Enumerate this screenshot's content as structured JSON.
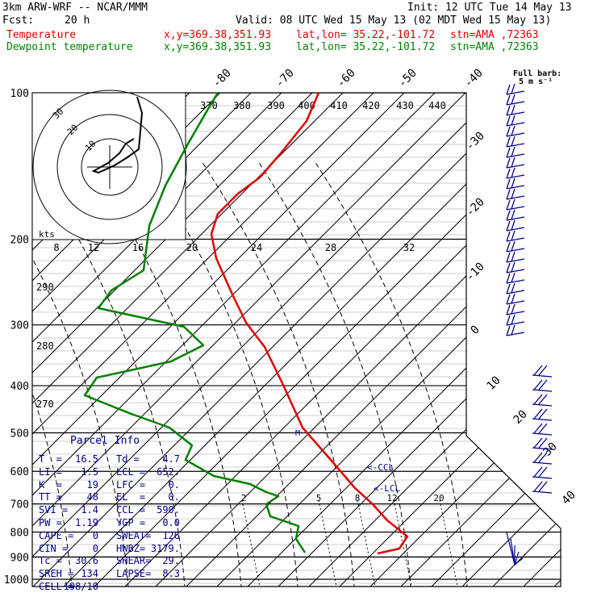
{
  "header": {
    "model": "3km ARW-WRF -- NCAR/MMM",
    "init": "Init: 12 UTC Tue 14 May 13",
    "fcst_label": "Fcst:",
    "fcst_value": "20 h",
    "valid": "Valid: 08 UTC Wed 15 May 13 (02 MDT Wed 15 May 13)",
    "temp_label": "Temperature",
    "dew_label": "Dewpoint temperature",
    "xy": "x,y=369.38,351.93",
    "latlon": "lat,lon= 35.22,-101.72",
    "stn": "stn=AMA ,72363"
  },
  "barb_legend": {
    "line1": "Full barb:",
    "line2": "5 m s⁻¹"
  },
  "parcel": {
    "title": "Parcel Info",
    "rows": [
      [
        "T  =",
        "16.5",
        "Td =",
        "4.7"
      ],
      [
        "LI =",
        "1.5",
        "LCL =",
        "652."
      ],
      [
        "K  =",
        "19",
        "LFC =",
        "0."
      ],
      [
        "TT =",
        "48",
        "EL  =",
        "0."
      ],
      [
        "SVI =",
        "1.4",
        "CCL =",
        "590."
      ],
      [
        "PW =",
        "1.19",
        "YGP =",
        "0.0"
      ],
      [
        "CAPE =",
        "0",
        "SWEAT=",
        "126"
      ],
      [
        "CIN =",
        "0",
        "HWBZ=",
        "3179."
      ],
      [
        "Tc =",
        "30.6",
        "SHEAR=",
        "29."
      ],
      [
        "SREH =",
        "134",
        "LAPSE=",
        "8.3"
      ],
      [
        "CELL =",
        "198/10",
        "",
        ""
      ]
    ]
  },
  "annotations": {
    "ccl": "<-CCL",
    "lcl": "<-LCL",
    "m": "M"
  },
  "chart_data": {
    "type": "line",
    "title": "",
    "xlabel": "",
    "ylabel": "",
    "pressure_levels": [
      100,
      200,
      300,
      400,
      500,
      600,
      700,
      800,
      900,
      1000
    ],
    "isotherm_labels": [
      -80,
      -70,
      -60,
      -50,
      -40,
      -30,
      -20,
      -10,
      0,
      10,
      20,
      30,
      40
    ],
    "dry_adiabat_labels": [
      290,
      280,
      270
    ],
    "theta_e_labels": [
      370,
      380,
      390,
      400,
      410,
      420,
      430,
      440
    ],
    "hodograph_speed_labels": [
      8,
      12,
      16,
      20,
      24,
      28,
      32
    ],
    "hodograph_unit": "kts",
    "hodograph_ring_labels": [
      30,
      20,
      10
    ],
    "mixing_ratio_labels": [
      2,
      5,
      8,
      12,
      20
    ],
    "series": [
      {
        "name": "Temperature",
        "color": "#e00000",
        "points": [
          [
            395,
            115
          ],
          [
            380,
            150
          ],
          [
            348,
            190
          ],
          [
            322,
            220
          ],
          [
            295,
            240
          ],
          [
            270,
            265
          ],
          [
            262,
            290
          ],
          [
            268,
            320
          ],
          [
            288,
            365
          ],
          [
            305,
            400
          ],
          [
            328,
            430
          ],
          [
            350,
            475
          ],
          [
            375,
            530
          ],
          [
            410,
            570
          ],
          [
            440,
            605
          ],
          [
            462,
            625
          ],
          [
            480,
            645
          ],
          [
            505,
            665
          ],
          [
            495,
            680
          ],
          [
            468,
            686
          ]
        ]
      },
      {
        "name": "Dewpoint temperature",
        "color": "#008000",
        "points": [
          [
            270,
            115
          ],
          [
            255,
            140
          ],
          [
            232,
            180
          ],
          [
            205,
            230
          ],
          [
            185,
            280
          ],
          [
            178,
            335
          ],
          [
            138,
            360
          ],
          [
            122,
            382
          ],
          [
            228,
            405
          ],
          [
            252,
            428
          ],
          [
            212,
            448
          ],
          [
            120,
            468
          ],
          [
            105,
            490
          ],
          [
            160,
            512
          ],
          [
            210,
            530
          ],
          [
            238,
            552
          ],
          [
            230,
            570
          ],
          [
            265,
            590
          ],
          [
            310,
            600
          ],
          [
            330,
            610
          ],
          [
            345,
            615
          ],
          [
            330,
            625
          ],
          [
            335,
            640
          ],
          [
            370,
            652
          ],
          [
            367,
            668
          ],
          [
            378,
            685
          ]
        ]
      }
    ]
  }
}
